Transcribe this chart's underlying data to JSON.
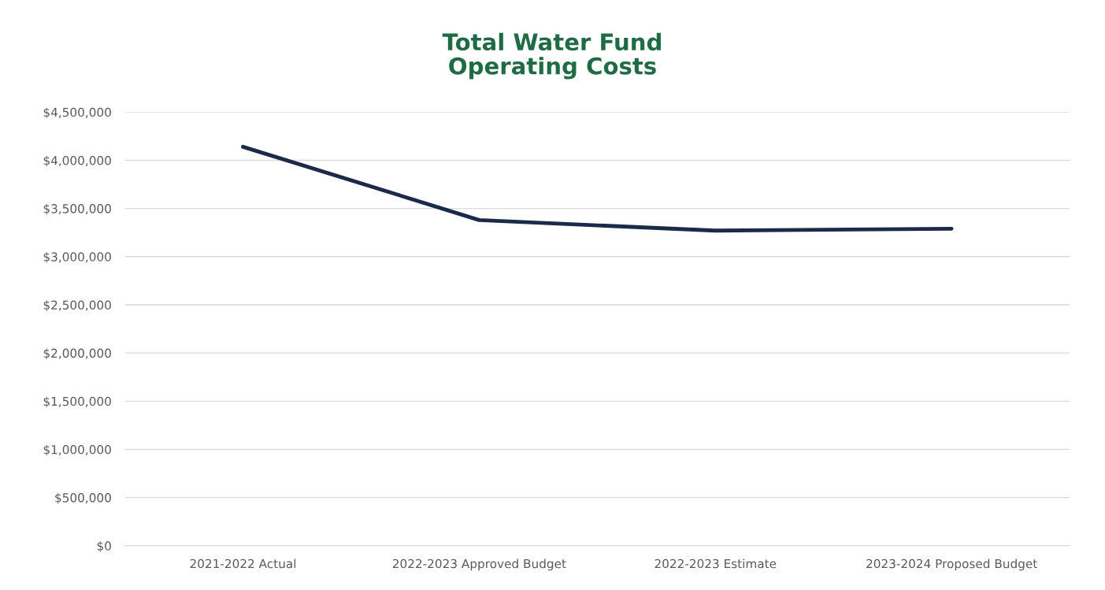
{
  "chart_data": {
    "type": "line",
    "title": "Total Water Fund\nOperating Costs",
    "categories": [
      "2021-2022 Actual",
      "2022-2023 Approved Budget",
      "2022-2023 Estimate",
      "2023-2024 Proposed Budget"
    ],
    "series": [
      {
        "color": "#1c2a4a",
        "values": [
          4140000,
          3380000,
          3270000,
          3290000
        ]
      }
    ],
    "ylim": [
      0,
      4500000
    ],
    "yticks": [
      {
        "value": 0,
        "label": "$0"
      },
      {
        "value": 500000,
        "label": "$500,000"
      },
      {
        "value": 1000000,
        "label": "$1,000,000"
      },
      {
        "value": 1500000,
        "label": "$1,500,000"
      },
      {
        "value": 2000000,
        "label": "$2,000,000"
      },
      {
        "value": 2500000,
        "label": "$2,500,000"
      },
      {
        "value": 3000000,
        "label": "$3,000,000"
      },
      {
        "value": 3500000,
        "label": "$3,500,000"
      },
      {
        "value": 4000000,
        "label": "$4,000,000"
      },
      {
        "value": 4500000,
        "label": "$4,500,000"
      }
    ],
    "grid": "y",
    "legend": false,
    "marker": "none",
    "line_style": "solid"
  }
}
